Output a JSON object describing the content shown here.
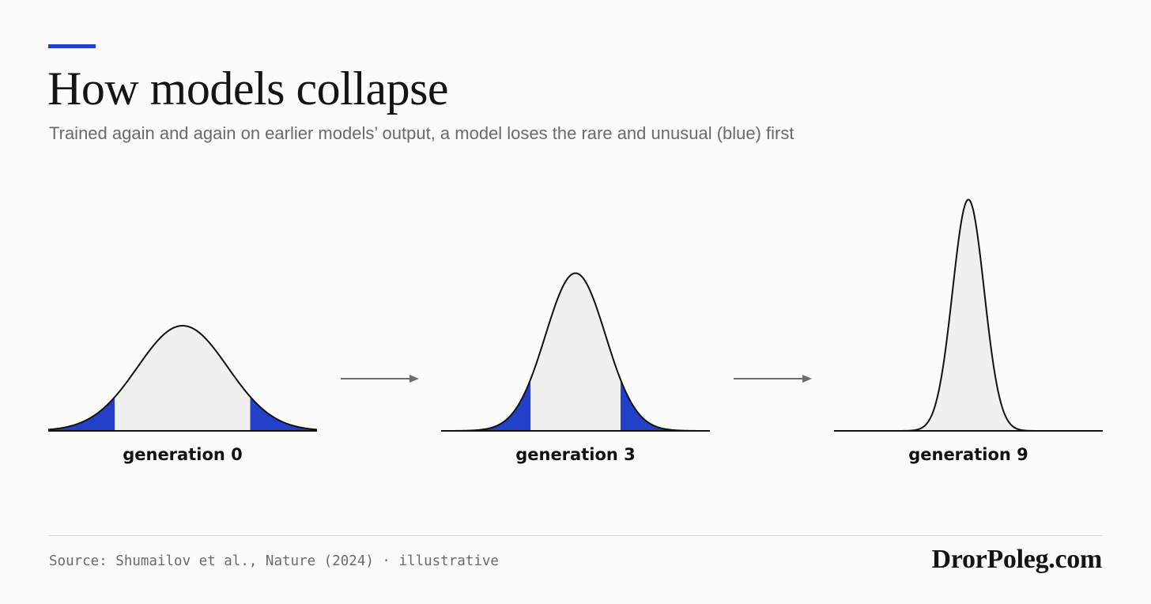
{
  "header": {
    "title": "How models collapse",
    "subtitle": "Trained again and again on earlier models’ output, a model loses the rare and unusual (blue) first"
  },
  "distributions": [
    {
      "label": "generation 0",
      "peak_ratio": 1.0,
      "tail_shaded": true
    },
    {
      "label": "generation 3",
      "peak_ratio": 1.5,
      "tail_shaded": true
    },
    {
      "label": "generation 9",
      "peak_ratio": 2.2,
      "tail_shaded": false
    }
  ],
  "footer": {
    "source": "Source: Shumailov et al., Nature (2024) · illustrative",
    "brand": "DrorPoleg.com"
  },
  "colors": {
    "accent": "#2540c8",
    "title": "#141414",
    "subtitle": "#6c6a63",
    "curve_fill": "#f0f1ef",
    "curve_stroke": "#111111",
    "arrow": "#6f6e6a",
    "source_text": "#6b6a66",
    "brand": "#141414"
  },
  "icons": {
    "arrow": "right-arrow-icon"
  }
}
